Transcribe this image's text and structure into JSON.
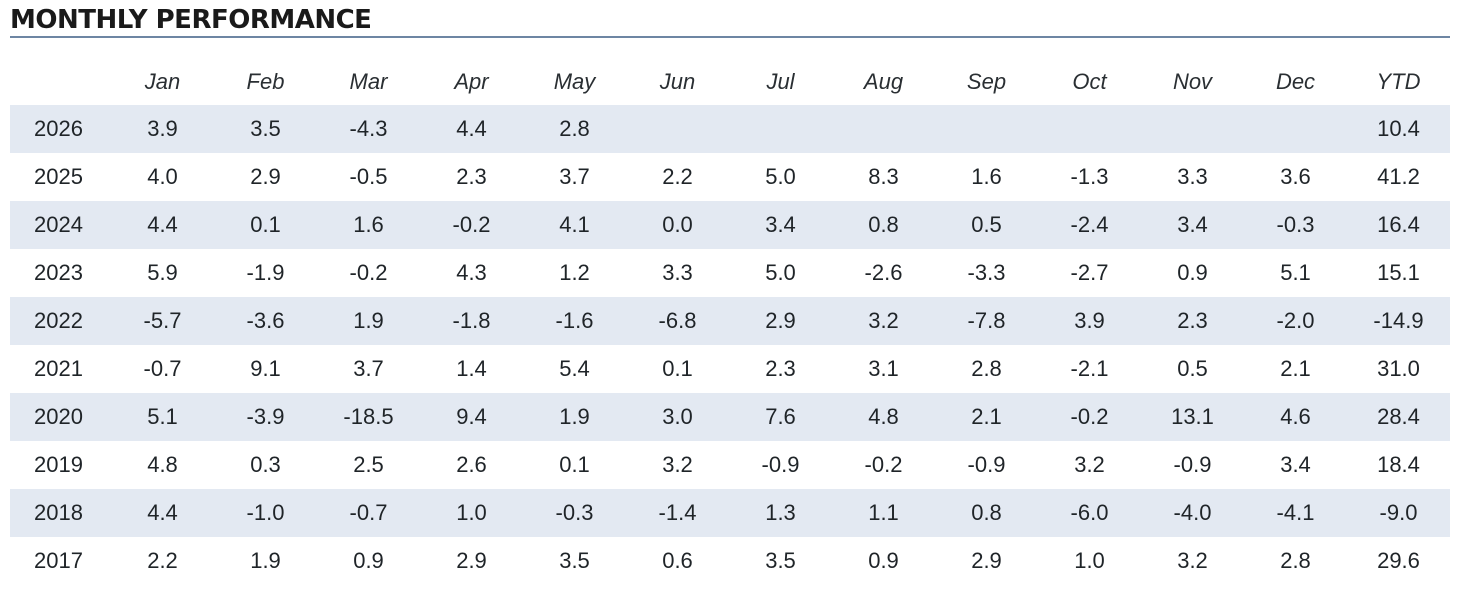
{
  "title": "MONTHLY PERFORMANCE",
  "colors": {
    "rule": "#6d86a3",
    "row_shade": "#e3e9f2"
  },
  "table": {
    "columns": [
      "",
      "Jan",
      "Feb",
      "Mar",
      "Apr",
      "May",
      "Jun",
      "Jul",
      "Aug",
      "Sep",
      "Oct",
      "Nov",
      "Dec",
      "YTD"
    ],
    "rows": [
      [
        "2026",
        "3.9",
        "3.5",
        "-4.3",
        "4.4",
        "2.8",
        "",
        "",
        "",
        "",
        "",
        "",
        "",
        "10.4"
      ],
      [
        "2025",
        "4.0",
        "2.9",
        "-0.5",
        "2.3",
        "3.7",
        "2.2",
        "5.0",
        "8.3",
        "1.6",
        "-1.3",
        "3.3",
        "3.6",
        "41.2"
      ],
      [
        "2024",
        "4.4",
        "0.1",
        "1.6",
        "-0.2",
        "4.1",
        "0.0",
        "3.4",
        "0.8",
        "0.5",
        "-2.4",
        "3.4",
        "-0.3",
        "16.4"
      ],
      [
        "2023",
        "5.9",
        "-1.9",
        "-0.2",
        "4.3",
        "1.2",
        "3.3",
        "5.0",
        "-2.6",
        "-3.3",
        "-2.7",
        "0.9",
        "5.1",
        "15.1"
      ],
      [
        "2022",
        "-5.7",
        "-3.6",
        "1.9",
        "-1.8",
        "-1.6",
        "-6.8",
        "2.9",
        "3.2",
        "-7.8",
        "3.9",
        "2.3",
        "-2.0",
        "-14.9"
      ],
      [
        "2021",
        "-0.7",
        "9.1",
        "3.7",
        "1.4",
        "5.4",
        "0.1",
        "2.3",
        "3.1",
        "2.8",
        "-2.1",
        "0.5",
        "2.1",
        "31.0"
      ],
      [
        "2020",
        "5.1",
        "-3.9",
        "-18.5",
        "9.4",
        "1.9",
        "3.0",
        "7.6",
        "4.8",
        "2.1",
        "-0.2",
        "13.1",
        "4.6",
        "28.4"
      ],
      [
        "2019",
        "4.8",
        "0.3",
        "2.5",
        "2.6",
        "0.1",
        "3.2",
        "-0.9",
        "-0.2",
        "-0.9",
        "3.2",
        "-0.9",
        "3.4",
        "18.4"
      ],
      [
        "2018",
        "4.4",
        "-1.0",
        "-0.7",
        "1.0",
        "-0.3",
        "-1.4",
        "1.3",
        "1.1",
        "0.8",
        "-6.0",
        "-4.0",
        "-4.1",
        "-9.0"
      ],
      [
        "2017",
        "2.2",
        "1.9",
        "0.9",
        "2.9",
        "3.5",
        "0.6",
        "3.5",
        "0.9",
        "2.9",
        "1.0",
        "3.2",
        "2.8",
        "29.6"
      ]
    ]
  }
}
